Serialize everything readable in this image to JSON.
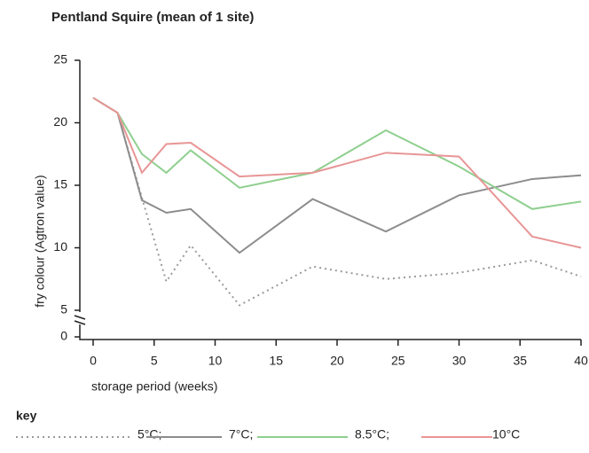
{
  "chart_data": {
    "type": "line",
    "title": "Pentland Squire (mean of 1 site)",
    "x_label": "storage period (weeks)",
    "y_label": "fry colour (Agtron value)",
    "legend_title": "key",
    "legend": "bottom",
    "x": [
      0,
      2,
      4,
      6,
      8,
      12,
      18,
      24,
      30,
      36,
      40
    ],
    "xlim": [
      0,
      40
    ],
    "xticks": [
      0,
      5,
      10,
      15,
      20,
      25,
      30,
      35,
      40
    ],
    "ylim": [
      0,
      25
    ],
    "yticks": [
      0,
      5,
      10,
      15,
      20,
      25
    ],
    "y_break": [
      0,
      5
    ],
    "series": [
      {
        "name": "5°C;",
        "color": "#9a9a9a",
        "style": "dotted",
        "values": [
          22,
          20.8,
          14,
          7.3,
          10.2,
          5.4,
          8.5,
          7.5,
          8,
          9,
          7.7
        ]
      },
      {
        "name": "7°C;",
        "color": "#8c8c8c",
        "style": "solid",
        "values": [
          22,
          20.8,
          13.8,
          12.8,
          13.1,
          9.6,
          13.9,
          11.3,
          14.2,
          15.5,
          15.8
        ]
      },
      {
        "name": "8.5°C;",
        "color": "#8fcf8f",
        "style": "solid",
        "values": [
          22,
          20.8,
          17.5,
          16,
          17.8,
          14.8,
          16,
          19.4,
          16.5,
          13.1,
          13.7
        ]
      },
      {
        "name": "10°C",
        "color": "#e89595",
        "style": "solid",
        "values": [
          22,
          20.8,
          16,
          18.3,
          18.4,
          15.7,
          16,
          17.6,
          17.3,
          10.9,
          10
        ]
      }
    ]
  }
}
